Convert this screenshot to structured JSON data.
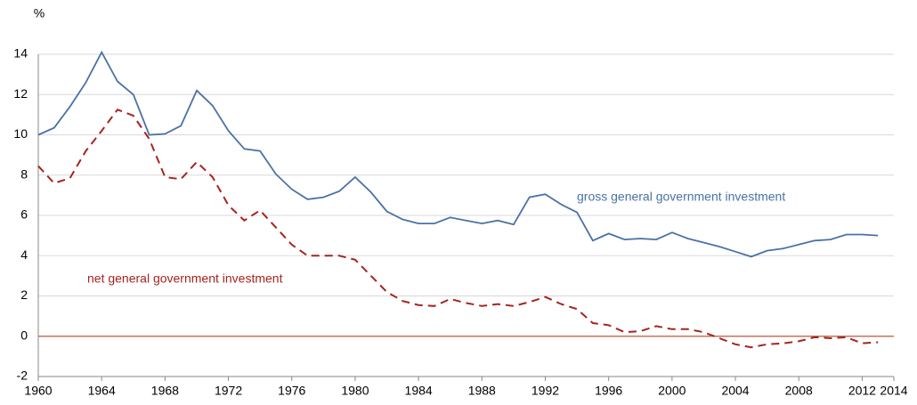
{
  "chart_data": {
    "type": "line",
    "y_unit": "%",
    "x": [
      1960,
      1961,
      1962,
      1963,
      1964,
      1965,
      1966,
      1967,
      1968,
      1969,
      1970,
      1971,
      1972,
      1973,
      1974,
      1975,
      1976,
      1977,
      1978,
      1979,
      1980,
      1981,
      1982,
      1983,
      1984,
      1985,
      1986,
      1987,
      1988,
      1989,
      1990,
      1991,
      1992,
      1993,
      1994,
      1995,
      1996,
      1997,
      1998,
      1999,
      2000,
      2001,
      2002,
      2003,
      2004,
      2005,
      2006,
      2007,
      2008,
      2009,
      2010,
      2011,
      2012,
      2013
    ],
    "series": [
      {
        "name": "gross general government investment",
        "color": "#4a72a6",
        "dashed": false,
        "values": [
          10.0,
          10.35,
          11.4,
          12.6,
          14.1,
          12.65,
          12.0,
          10.0,
          10.05,
          10.45,
          12.2,
          11.45,
          10.2,
          9.3,
          9.2,
          8.05,
          7.3,
          6.8,
          6.9,
          7.2,
          7.9,
          7.15,
          6.2,
          5.8,
          5.6,
          5.6,
          5.9,
          5.75,
          5.6,
          5.75,
          5.55,
          6.9,
          7.05,
          6.55,
          6.15,
          4.75,
          5.1,
          4.8,
          4.85,
          4.8,
          5.15,
          4.85,
          4.65,
          4.45,
          4.2,
          3.95,
          4.25,
          4.35,
          4.55,
          4.75,
          4.8,
          5.05,
          5.05,
          5.0
        ]
      },
      {
        "name": "net general government investment",
        "color": "#a52420",
        "dashed": true,
        "values": [
          8.45,
          7.6,
          7.85,
          9.2,
          10.2,
          11.25,
          10.95,
          9.8,
          7.9,
          7.8,
          8.65,
          7.9,
          6.5,
          5.75,
          6.25,
          5.4,
          4.55,
          4.0,
          4.0,
          4.0,
          3.8,
          3.0,
          2.2,
          1.75,
          1.55,
          1.5,
          1.85,
          1.65,
          1.5,
          1.6,
          1.5,
          1.7,
          1.95,
          1.6,
          1.35,
          0.65,
          0.55,
          0.2,
          0.25,
          0.5,
          0.35,
          0.35,
          0.2,
          -0.1,
          -0.4,
          -0.55,
          -0.4,
          -0.35,
          -0.25,
          -0.05,
          -0.1,
          -0.05,
          -0.35,
          -0.3
        ]
      }
    ],
    "xlim": [
      1960,
      2014
    ],
    "xticks": [
      1960,
      1964,
      1968,
      1972,
      1976,
      1980,
      1984,
      1988,
      1992,
      1996,
      2000,
      2004,
      2008,
      2012,
      2014
    ],
    "ylim": [
      -2,
      14
    ],
    "yticks": [
      -2,
      0,
      2,
      4,
      6,
      8,
      10,
      12,
      14
    ],
    "grid": true,
    "zero_line_color": "#c0765a"
  }
}
